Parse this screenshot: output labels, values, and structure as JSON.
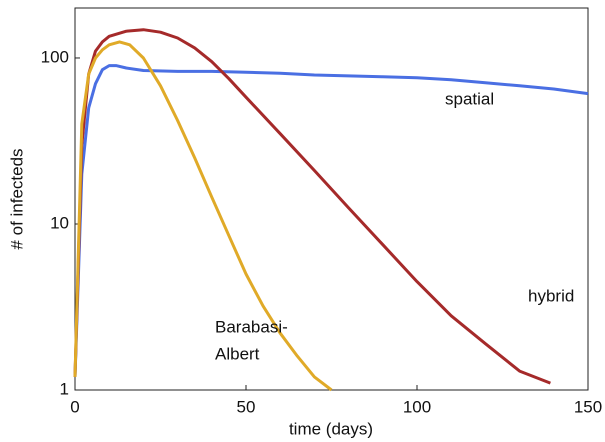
{
  "chart_data": {
    "type": "line",
    "xlabel": "time (days)",
    "ylabel": "# of infecteds",
    "xlim": [
      0,
      150
    ],
    "xticks": [
      0,
      50,
      100,
      150
    ],
    "ylim": [
      1,
      200
    ],
    "yticks": [
      1,
      10,
      100
    ],
    "ylog": true,
    "grid": false,
    "series": [
      {
        "label": [
          "spatial"
        ],
        "color": "#4a6fe3",
        "x": [
          0,
          2,
          4,
          6,
          8,
          10,
          12,
          15,
          20,
          30,
          40,
          50,
          60,
          70,
          80,
          90,
          100,
          110,
          120,
          130,
          140,
          150
        ],
        "values": [
          1.2,
          20,
          50,
          70,
          85,
          90,
          90,
          87,
          84,
          83,
          83,
          82,
          81,
          79,
          78,
          77,
          76,
          74,
          71,
          68,
          65,
          61
        ]
      },
      {
        "label": [
          "hybrid"
        ],
        "color": "#a52a2a",
        "x": [
          0,
          2,
          4,
          6,
          8,
          10,
          15,
          20,
          25,
          30,
          35,
          40,
          45,
          50,
          60,
          70,
          80,
          90,
          100,
          110,
          120,
          130,
          139
        ],
        "values": [
          1.2,
          30,
          80,
          110,
          125,
          135,
          145,
          148,
          143,
          132,
          115,
          95,
          75,
          58,
          35,
          21,
          12.5,
          7.5,
          4.5,
          2.8,
          1.9,
          1.3,
          1.1
        ]
      },
      {
        "label": [
          "Barabasi-",
          "Albert"
        ],
        "color": "#e0aa28",
        "x": [
          0,
          2,
          4,
          6,
          8,
          10,
          13,
          16,
          20,
          25,
          30,
          35,
          40,
          45,
          50,
          55,
          60,
          65,
          70,
          75
        ],
        "values": [
          1.2,
          40,
          80,
          100,
          112,
          120,
          125,
          120,
          100,
          68,
          42,
          25,
          14.5,
          8.5,
          5,
          3.2,
          2.2,
          1.6,
          1.2,
          1.0
        ]
      }
    ]
  }
}
